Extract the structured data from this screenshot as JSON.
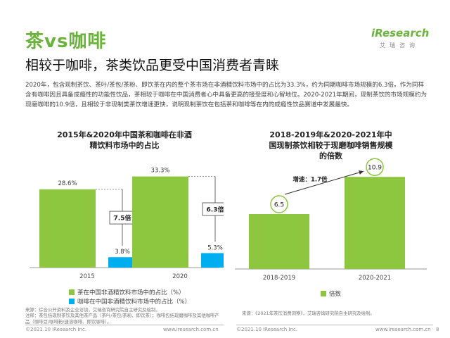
{
  "slide": {
    "title": "茶vs咖啡",
    "subtitle": "相较于咖啡，茶类饮品更受中国消费者青睐",
    "intro": "2020年，包含现制茶饮、茶叶/茶包/茶粉、即饮茶在内的整个茶市场在非酒精饮料市场中的占比为33.3%，约为同期咖啡市场规模的6.3倍。作为同样含有咖啡因且具备成瘾性的功能性饮品，茶相较于咖啡在中国消费者心中具备更高的接受度和心智地位。2020-2021年期间，现制茶饮的市场规模约为现磨咖啡的10.9倍，且相较于非现制类茶饮增速更快，说明现制茶饮在包括茶和咖啡等在内的成瘾性饮品赛道中发展最快。",
    "logo_main": "iResearch",
    "logo_sub": "艾瑞咨询",
    "page_number": "8"
  },
  "colors": {
    "green": "#8dc63f",
    "blue": "#00aeef",
    "title_green": "#6cb33e",
    "axis": "#999999"
  },
  "chart_data": [
    {
      "type": "bar",
      "title": "2015年&2020年中国茶和咖啡在非酒精饮料市场中的占比",
      "categories": [
        "2015",
        "2020"
      ],
      "series": [
        {
          "name": "茶在中国非酒精饮料市场中的占比（%）",
          "values": [
            28.6,
            33.3
          ],
          "labels": [
            "28.6%",
            "33.3%"
          ]
        },
        {
          "name": "咖啡在中国非酒精饮料市场中的占比（%）",
          "values": [
            3.8,
            5.3
          ],
          "labels": [
            "3.8%",
            "5.3%"
          ]
        }
      ],
      "annotations": [
        "7.5倍",
        "6.3倍"
      ],
      "ylim": [
        0,
        35
      ]
    },
    {
      "type": "bar",
      "title": "2018-2019年&2020-2021年中国现制茶饮相较于现磨咖啡销售规模的倍数",
      "categories": [
        "2018-2019",
        "2020-2021"
      ],
      "series": [
        {
          "name": "倍数",
          "values": [
            6.5,
            10.9
          ],
          "labels": [
            "6.5",
            "10.9"
          ]
        }
      ],
      "annotations": [
        "增速：1.7倍"
      ],
      "ylim": [
        0,
        12
      ]
    }
  ],
  "sources": {
    "left": [
      "来源：综合公开资料及企业访谈，艾瑞咨询研究院自主研究及绘制。",
      "注释：茶包括现制茶饮及其他茶产品（茶叶/茶包/茶粉、即饮茶）；咖啡包括现磨咖啡及其他咖啡产品（咖啡豆/咖啡粉/速溶咖啡、即饮咖啡）。"
    ],
    "right": "来源：《2021年茶饮消费洞察》，艾瑞咨询研究院自主研究及绘制。"
  },
  "footer": {
    "copyright": "©2021.10 iResearch Inc.",
    "url": "www.iresearch.com.cn"
  }
}
